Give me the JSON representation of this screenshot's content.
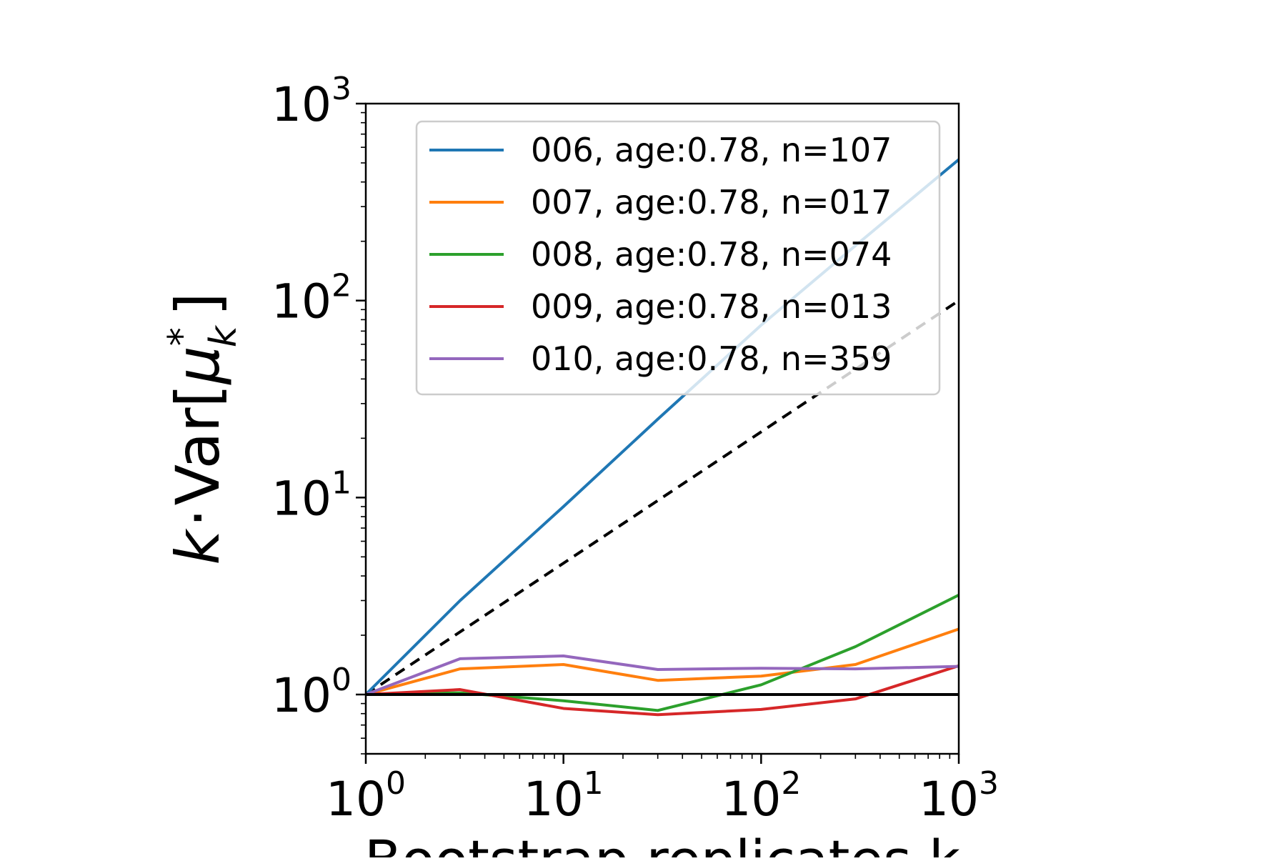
{
  "chart_data": {
    "type": "line",
    "xscale": "log",
    "yscale": "log",
    "xlim": [
      1,
      1000
    ],
    "ylim": [
      0.5,
      1000
    ],
    "xlabel": "Bootstrap replicates k",
    "ylabel": "k · Var[μ*k]",
    "ylabel_parts": {
      "k": "k",
      "dot": "·",
      "var": "Var[",
      "mu": "μ",
      "star": "*",
      "sub": "k",
      "close": "]"
    },
    "x_ticks": [
      {
        "value": 1,
        "base": "10",
        "exp": "0"
      },
      {
        "value": 10,
        "base": "10",
        "exp": "1"
      },
      {
        "value": 100,
        "base": "10",
        "exp": "2"
      },
      {
        "value": 1000,
        "base": "10",
        "exp": "3"
      }
    ],
    "y_ticks": [
      {
        "value": 1,
        "base": "10",
        "exp": "0"
      },
      {
        "value": 10,
        "base": "10",
        "exp": "1"
      },
      {
        "value": 100,
        "base": "10",
        "exp": "2"
      },
      {
        "value": 1000,
        "base": "10",
        "exp": "3"
      }
    ],
    "x": [
      1,
      3,
      10,
      30,
      100,
      300,
      1000
    ],
    "series": [
      {
        "name": "006, age:0.78, n=107",
        "color": "#1f77b4",
        "values": [
          1,
          3.0,
          9.0,
          25,
          75,
          190,
          520
        ]
      },
      {
        "name": "007, age:0.78, n=017",
        "color": "#ff7f0e",
        "values": [
          1,
          1.35,
          1.42,
          1.18,
          1.24,
          1.42,
          2.15
        ]
      },
      {
        "name": "008, age:0.78, n=074",
        "color": "#2ca02c",
        "values": [
          1,
          1.02,
          0.93,
          0.83,
          1.12,
          1.75,
          3.2
        ]
      },
      {
        "name": "009, age:0.78, n=013",
        "color": "#d62728",
        "values": [
          1,
          1.06,
          0.85,
          0.79,
          0.84,
          0.95,
          1.4
        ]
      },
      {
        "name": "010, age:0.78, n=359",
        "color": "#9467bd",
        "values": [
          1,
          1.52,
          1.57,
          1.34,
          1.36,
          1.35,
          1.39
        ]
      }
    ],
    "reference_lines": [
      {
        "name": "slope-half-reference",
        "style": "dashed",
        "color": "#000000",
        "x": [
          1,
          1000
        ],
        "values": [
          1,
          100
        ]
      },
      {
        "name": "unity-reference",
        "style": "solid",
        "color": "#000000",
        "x": [
          1,
          1000
        ],
        "values": [
          1,
          1
        ]
      }
    ],
    "legend_position": "upper-right",
    "grid": false
  }
}
